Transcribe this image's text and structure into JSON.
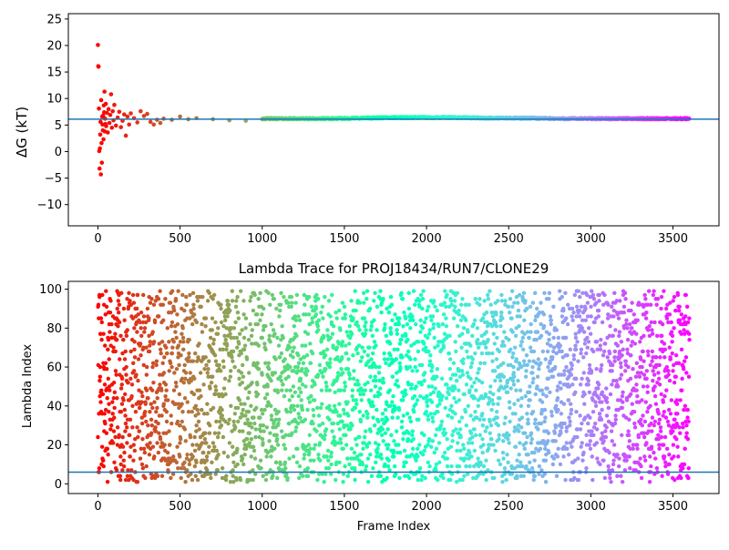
{
  "chart_data": [
    {
      "type": "scatter",
      "title": "",
      "xlabel": "",
      "ylabel": "ΔG (kT)",
      "xlim": [
        -180,
        3780
      ],
      "ylim": [
        -14,
        26
      ],
      "xticks": [
        0,
        500,
        1000,
        1500,
        2000,
        2500,
        3000,
        3500
      ],
      "yticks": [
        -10,
        -5,
        0,
        5,
        10,
        15,
        20,
        25
      ],
      "xtick_labels": [
        "0",
        "500",
        "1000",
        "1500",
        "2000",
        "2500",
        "3000",
        "3500"
      ],
      "ytick_labels": [
        "−10",
        "−5",
        "0",
        "5",
        "10",
        "15",
        "20",
        "25"
      ],
      "hline": 6.1,
      "colormap": "rainbow (red at frame 0 → violet at frame 3600)",
      "early_points": [
        [
          0,
          20.1
        ],
        [
          2,
          16.1
        ],
        [
          4,
          16.0
        ],
        [
          6,
          8.1
        ],
        [
          8,
          0.1
        ],
        [
          10,
          -3.2
        ],
        [
          12,
          0.6
        ],
        [
          14,
          3.2
        ],
        [
          16,
          5.6
        ],
        [
          18,
          -4.3
        ],
        [
          20,
          9.7
        ],
        [
          22,
          1.6
        ],
        [
          24,
          -2.1
        ],
        [
          26,
          6.6
        ],
        [
          28,
          5.1
        ],
        [
          30,
          4.0
        ],
        [
          32,
          6.8
        ],
        [
          34,
          2.3
        ],
        [
          36,
          8.7
        ],
        [
          38,
          7.4
        ],
        [
          40,
          11.3
        ],
        [
          42,
          3.8
        ],
        [
          44,
          6.2
        ],
        [
          46,
          5.2
        ],
        [
          48,
          9.0
        ],
        [
          50,
          4.8
        ],
        [
          55,
          7.3
        ],
        [
          60,
          3.6
        ],
        [
          65,
          8.0
        ],
        [
          70,
          5.4
        ],
        [
          75,
          6.9
        ],
        [
          80,
          10.8
        ],
        [
          85,
          4.5
        ],
        [
          90,
          7.6
        ],
        [
          95,
          5.9
        ],
        [
          100,
          8.8
        ],
        [
          110,
          4.9
        ],
        [
          120,
          6.4
        ],
        [
          130,
          7.5
        ],
        [
          140,
          4.6
        ],
        [
          150,
          5.8
        ],
        [
          160,
          7.0
        ],
        [
          170,
          3.0
        ],
        [
          180,
          6.6
        ],
        [
          190,
          5.1
        ],
        [
          200,
          7.2
        ],
        [
          220,
          6.3
        ],
        [
          240,
          5.5
        ],
        [
          260,
          7.6
        ],
        [
          280,
          6.7
        ],
        [
          300,
          7.1
        ],
        [
          320,
          5.6
        ],
        [
          340,
          5.1
        ],
        [
          360,
          6.0
        ],
        [
          380,
          5.4
        ],
        [
          400,
          6.2
        ],
        [
          450,
          6.0
        ],
        [
          500,
          6.6
        ],
        [
          550,
          6.1
        ],
        [
          600,
          6.3
        ],
        [
          700,
          6.1
        ],
        [
          800,
          5.9
        ],
        [
          900,
          5.8
        ],
        [
          1000,
          6.1
        ]
      ],
      "trend_points": [
        [
          1000,
          6.2
        ],
        [
          1200,
          6.2
        ],
        [
          1400,
          6.2
        ],
        [
          1600,
          6.3
        ],
        [
          1800,
          6.4
        ],
        [
          2000,
          6.4
        ],
        [
          2200,
          6.4
        ],
        [
          2400,
          6.3
        ],
        [
          2600,
          6.3
        ],
        [
          2800,
          6.2
        ],
        [
          3000,
          6.2
        ],
        [
          3200,
          6.2
        ],
        [
          3400,
          6.2
        ],
        [
          3600,
          6.2
        ]
      ]
    },
    {
      "type": "scatter",
      "title": "Lambda Trace for PROJ18434/RUN7/CLONE29",
      "xlabel": "Frame Index",
      "ylabel": "Lambda Index",
      "xlim": [
        -180,
        3780
      ],
      "ylim": [
        -5,
        104
      ],
      "xticks": [
        0,
        500,
        1000,
        1500,
        2000,
        2500,
        3000,
        3500
      ],
      "yticks": [
        0,
        20,
        40,
        60,
        80,
        100
      ],
      "xtick_labels": [
        "0",
        "500",
        "1000",
        "1500",
        "2000",
        "2500",
        "3000",
        "3500"
      ],
      "ytick_labels": [
        "0",
        "20",
        "40",
        "60",
        "80",
        "100"
      ],
      "hline": 6,
      "frame_range": [
        0,
        3600
      ],
      "lambda_range": [
        1,
        99
      ],
      "n_points": 3600,
      "colormap": "rainbow (red at frame 0 → violet at frame 3600)"
    }
  ]
}
